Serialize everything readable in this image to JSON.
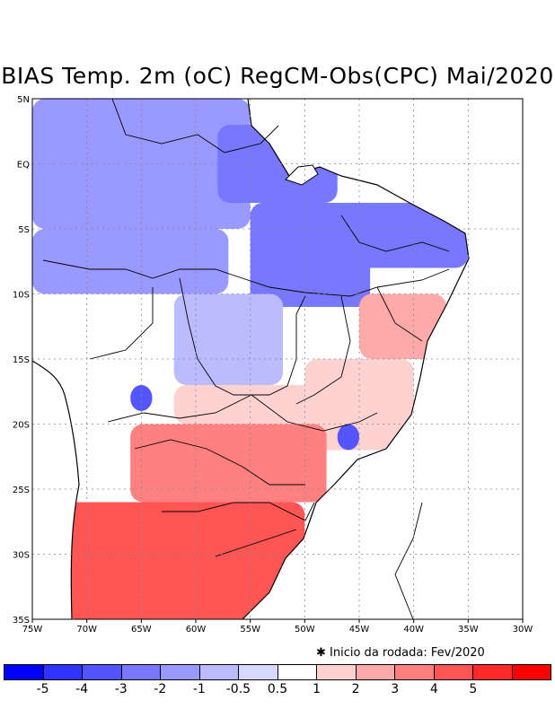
{
  "title": "BIAS Temp. 2m (oC) RegCM-Obs(CPC) Mai/2020",
  "footnote": "Inicio da rodada: Fev/2020",
  "axes": {
    "lat_labels": [
      "5N",
      "EQ",
      "5S",
      "10S",
      "15S",
      "20S",
      "25S",
      "30S",
      "35S"
    ],
    "lon_labels": [
      "75W",
      "70W",
      "65W",
      "60W",
      "55W",
      "50W",
      "45W",
      "40W",
      "35W",
      "30W"
    ]
  },
  "colorbar": {
    "colors": [
      "#0000ff",
      "#3333ff",
      "#5555ff",
      "#7777ff",
      "#9999ff",
      "#bbbbff",
      "#d8d8ff",
      "#ffffff",
      "#ffd2d2",
      "#ffaaaa",
      "#ff8080",
      "#ff5555",
      "#ff2b2b",
      "#ff0000"
    ],
    "labels": [
      "-5",
      "-4",
      "-3",
      "-2",
      "-1",
      "-0.5",
      "0.5",
      "1",
      "2",
      "3",
      "4",
      "5"
    ]
  },
  "chart_data": {
    "type": "heatmap",
    "title": "BIAS Temp. 2m (oC) RegCM-Obs(CPC) Mai/2020",
    "variable": "2m temperature bias (oC)",
    "lon_range": [
      -75,
      -30
    ],
    "lat_range": [
      -35,
      5
    ],
    "levels": [
      -5,
      -4,
      -3,
      -2,
      -1,
      -0.5,
      0.5,
      1,
      2,
      3,
      4,
      5
    ],
    "regions": [
      {
        "lon": [
          -75,
          -55
        ],
        "lat": [
          -5,
          5
        ],
        "value": -1.5
      },
      {
        "lon": [
          -58,
          -47
        ],
        "lat": [
          -3,
          3
        ],
        "value": -2.5
      },
      {
        "lon": [
          -55,
          -44
        ],
        "lat": [
          -11,
          -3
        ],
        "value": -2.5
      },
      {
        "lon": [
          -47,
          -35
        ],
        "lat": [
          -8,
          -3
        ],
        "value": -2
      },
      {
        "lon": [
          -75,
          -57
        ],
        "lat": [
          -10,
          -5
        ],
        "value": -1.5
      },
      {
        "lon": [
          -62,
          -52
        ],
        "lat": [
          -17,
          -10
        ],
        "value": -0.5
      },
      {
        "lon": [
          -70,
          -62
        ],
        "lat": [
          -16,
          -10
        ],
        "value": 1
      },
      {
        "lon": [
          -66,
          -64
        ],
        "lat": [
          -19,
          -17
        ],
        "value": -3
      },
      {
        "lon": [
          -45,
          -37
        ],
        "lat": [
          -15,
          -10
        ],
        "value": 3
      },
      {
        "lon": [
          -50,
          -40
        ],
        "lat": [
          -22,
          -15
        ],
        "value": 2
      },
      {
        "lon": [
          -47,
          -45
        ],
        "lat": [
          -22,
          -20
        ],
        "value": -3
      },
      {
        "lon": [
          -62,
          -45
        ],
        "lat": [
          -20,
          -17
        ],
        "value": 1.5
      },
      {
        "lon": [
          -66,
          -48
        ],
        "lat": [
          -26,
          -20
        ],
        "value": 4
      },
      {
        "lon": [
          -72,
          -50
        ],
        "lat": [
          -35,
          -26
        ],
        "value": 5
      }
    ]
  }
}
